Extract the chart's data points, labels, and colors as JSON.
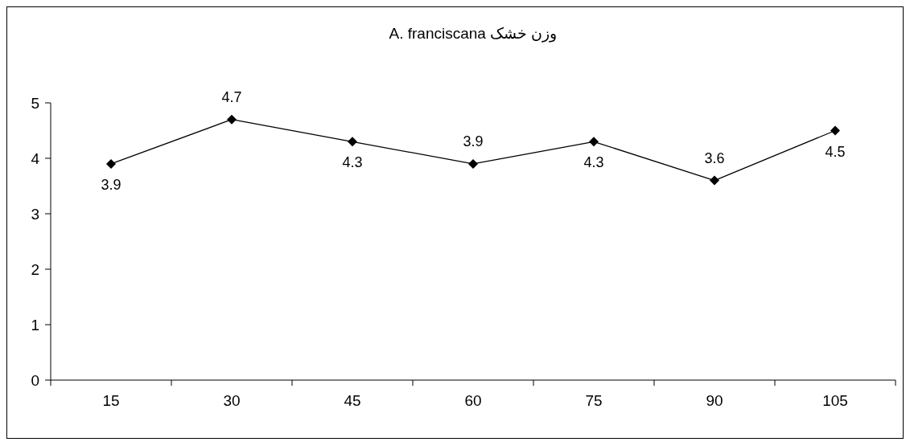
{
  "chart_data": {
    "type": "line",
    "title": "وزن خشک A. franciscana",
    "categories": [
      "15",
      "30",
      "45",
      "60",
      "75",
      "90",
      "105"
    ],
    "series": [
      {
        "color": "#000000",
        "values": [
          3.9,
          4.7,
          4.3,
          3.9,
          4.3,
          3.6,
          4.5
        ]
      }
    ],
    "ylim": [
      0,
      5
    ],
    "yticks": [
      0,
      1,
      2,
      3,
      4,
      5
    ],
    "grid": false,
    "marker": "diamond",
    "line_style": "solid",
    "data_labels": true
  }
}
